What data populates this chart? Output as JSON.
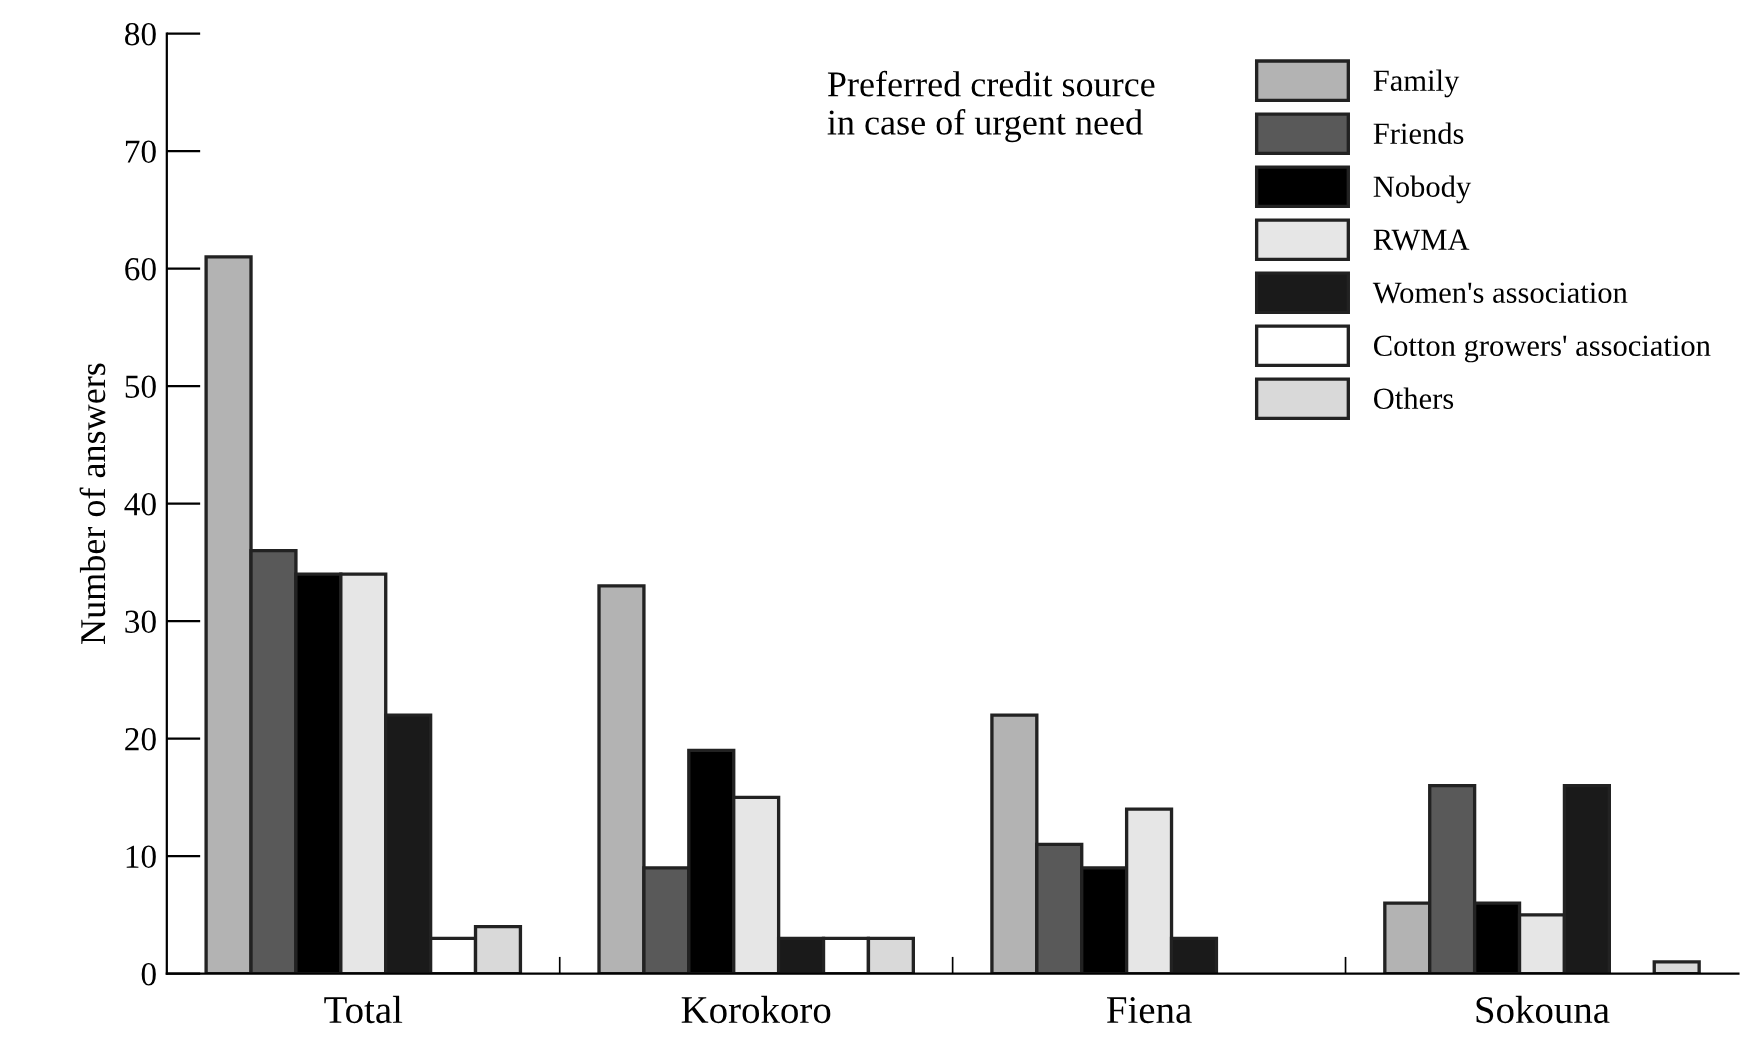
{
  "chart_data": {
    "type": "bar",
    "ylabel": "Number of answers",
    "legend_title": "Preferred credit source\nin case of urgent need",
    "categories": [
      "Total",
      "Korokoro",
      "Fiena",
      "Sokouna"
    ],
    "series": [
      {
        "name": "Family",
        "color": "#b3b3b3",
        "values": [
          61,
          33,
          22,
          6
        ]
      },
      {
        "name": "Friends",
        "color": "#595959",
        "values": [
          36,
          9,
          11,
          16
        ]
      },
      {
        "name": "Nobody",
        "color": "#000000",
        "values": [
          34,
          19,
          9,
          6
        ]
      },
      {
        "name": "RWMA",
        "color": "#e6e6e6",
        "values": [
          34,
          15,
          14,
          5
        ]
      },
      {
        "name": "Women's association",
        "color": "#1a1a1a",
        "values": [
          22,
          3,
          3,
          16
        ]
      },
      {
        "name": "Cotton growers' association",
        "color": "#ffffff",
        "values": [
          3,
          3,
          null,
          null
        ]
      },
      {
        "name": "Others",
        "color": "#d9d9d9",
        "values": [
          4,
          3,
          null,
          1
        ]
      }
    ],
    "ylim": [
      0,
      80
    ],
    "yticks": [
      0,
      10,
      20,
      30,
      40,
      50,
      60,
      70,
      80
    ],
    "grid": false,
    "legend": "top right"
  }
}
